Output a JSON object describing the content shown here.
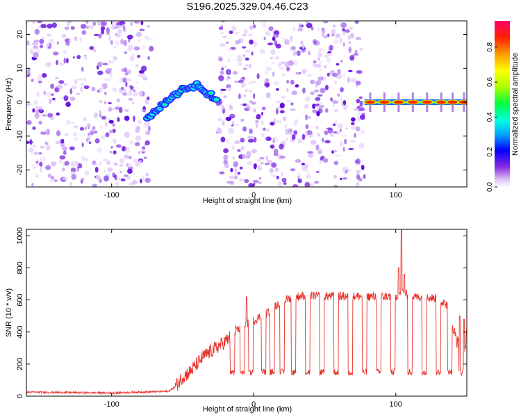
{
  "title": "S196.2025.329.04.46.C23",
  "chart_data": [
    {
      "type": "heatmap",
      "title": "S196.2025.329.04.46.C23",
      "xlabel": "Height of straight line (km)",
      "ylabel": "Frequency (Hz)",
      "xlim": [
        -160,
        150
      ],
      "ylim": [
        -25,
        24
      ],
      "x_ticks": [
        -100,
        0,
        100
      ],
      "y_ticks": [
        -20,
        -10,
        0,
        10,
        20
      ],
      "noise_regions": [
        [
          -160,
          -72
        ],
        [
          -25,
          78
        ]
      ],
      "signal_track": {
        "x": [
          -75,
          -70,
          -65,
          -60,
          -55,
          -50,
          -45,
          -40,
          -35,
          -30,
          -25
        ],
        "y": [
          -5,
          -3,
          -1,
          1,
          2,
          4,
          4,
          5,
          3,
          2,
          1
        ]
      },
      "signal_bursts_x": [
        82,
        92,
        102,
        112,
        122,
        132,
        140,
        148
      ],
      "signal_burst_y": 0,
      "colorbar": {
        "label": "Normalized spectral amplitude",
        "range": [
          0,
          0.95
        ],
        "ticks": [
          0.0,
          0.2,
          0.4,
          0.6,
          0.8
        ]
      }
    },
    {
      "type": "line",
      "xlabel": "Height of straight line (km)",
      "ylabel": "SNR (10 * v/v)",
      "xlim": [
        -160,
        150
      ],
      "ylim": [
        0,
        1040
      ],
      "x_ticks": [
        -100,
        0,
        100
      ],
      "y_ticks": [
        0,
        200,
        400,
        600,
        800,
        1000
      ],
      "color": "#e8312a",
      "envelope": {
        "x": [
          -160,
          -100,
          -60,
          -55,
          -50,
          -45,
          -40,
          -35,
          -30,
          -25,
          -20,
          -15,
          -10,
          -5,
          0,
          5,
          10,
          15,
          20,
          25,
          30,
          35,
          40,
          100,
          105,
          110,
          130,
          137,
          140,
          145,
          147,
          150
        ],
        "y": [
          25,
          20,
          30,
          60,
          120,
          150,
          200,
          250,
          280,
          310,
          340,
          380,
          420,
          450,
          470,
          500,
          520,
          560,
          590,
          610,
          620,
          625,
          625,
          620,
          650,
          620,
          610,
          560,
          420,
          300,
          90,
          440
        ]
      },
      "spikes": [
        [
          -5,
          620
        ],
        [
          102,
          800
        ],
        [
          104,
          1040
        ],
        [
          106,
          760
        ],
        [
          145,
          500
        ],
        [
          148,
          480
        ]
      ],
      "dips_x": [
        -15,
        -8,
        -2,
        7,
        13,
        20,
        28,
        38,
        48,
        58,
        68,
        78,
        88,
        98,
        110,
        120,
        130,
        138,
        146
      ],
      "dip_y": 150
    }
  ]
}
